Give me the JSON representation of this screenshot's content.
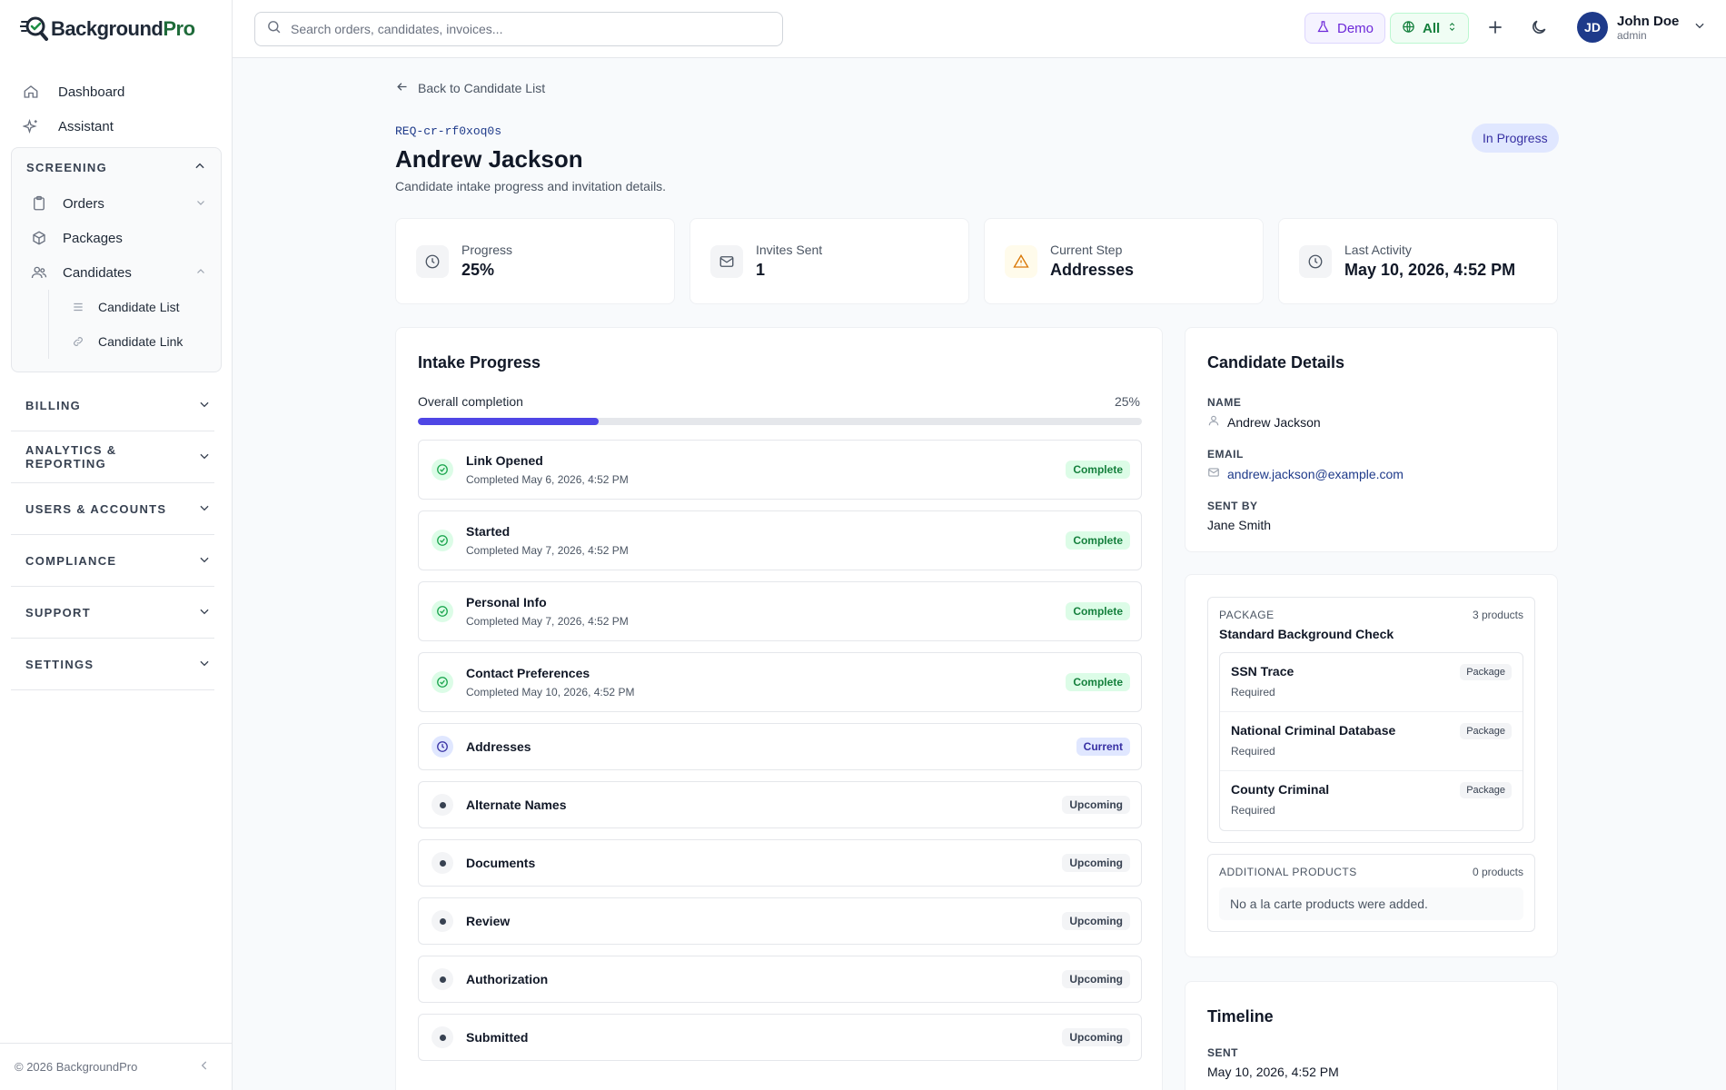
{
  "brand": {
    "name_part1": "Background",
    "name_part2": "Pro"
  },
  "sidebar": {
    "top_items": [
      {
        "label": "Dashboard",
        "icon": "home-icon"
      },
      {
        "label": "Assistant",
        "icon": "sparkle-icon"
      }
    ],
    "screening": {
      "title": "SCREENING",
      "items": [
        {
          "label": "Orders",
          "icon": "clipboard-icon"
        },
        {
          "label": "Packages",
          "icon": "box-icon"
        },
        {
          "label": "Candidates",
          "icon": "users-icon"
        }
      ],
      "candidate_sub": [
        {
          "label": "Candidate List",
          "icon": "list-icon"
        },
        {
          "label": "Candidate Link",
          "icon": "link-icon"
        }
      ]
    },
    "sections": [
      "BILLING",
      "ANALYTICS & REPORTING",
      "USERS & ACCOUNTS",
      "COMPLIANCE",
      "SUPPORT",
      "SETTINGS"
    ],
    "footer": "© 2026 BackgroundPro"
  },
  "topbar": {
    "search_placeholder": "Search orders, candidates, invoices...",
    "demo_label": "Demo",
    "scope_label": "All",
    "user": {
      "initials": "JD",
      "name": "John Doe",
      "role": "admin"
    }
  },
  "page": {
    "back_label": "Back to Candidate List",
    "request_id": "REQ-cr-rf0xoq0s",
    "title": "Andrew Jackson",
    "subtitle": "Candidate intake progress and invitation details.",
    "status": "In Progress"
  },
  "stats": [
    {
      "label": "Progress",
      "value": "25%",
      "icon": "clock-icon"
    },
    {
      "label": "Invites Sent",
      "value": "1",
      "icon": "mail-icon"
    },
    {
      "label": "Current Step",
      "value": "Addresses",
      "icon": "warning-icon"
    },
    {
      "label": "Last Activity",
      "value": "May 10, 2026, 4:52 PM",
      "icon": "clock-icon"
    }
  ],
  "intake": {
    "title": "Intake Progress",
    "overall_label": "Overall completion",
    "overall_pct_text": "25%",
    "overall_pct": 25,
    "steps": [
      {
        "name": "Link Opened",
        "date": "Completed May 6, 2026, 4:52 PM",
        "status": "complete",
        "badge": "Complete"
      },
      {
        "name": "Started",
        "date": "Completed May 7, 2026, 4:52 PM",
        "status": "complete",
        "badge": "Complete"
      },
      {
        "name": "Personal Info",
        "date": "Completed May 7, 2026, 4:52 PM",
        "status": "complete",
        "badge": "Complete"
      },
      {
        "name": "Contact Preferences",
        "date": "Completed May 10, 2026, 4:52 PM",
        "status": "complete",
        "badge": "Complete"
      },
      {
        "name": "Addresses",
        "date": "",
        "status": "current",
        "badge": "Current"
      },
      {
        "name": "Alternate Names",
        "date": "",
        "status": "upcoming",
        "badge": "Upcoming"
      },
      {
        "name": "Documents",
        "date": "",
        "status": "upcoming",
        "badge": "Upcoming"
      },
      {
        "name": "Review",
        "date": "",
        "status": "upcoming",
        "badge": "Upcoming"
      },
      {
        "name": "Authorization",
        "date": "",
        "status": "upcoming",
        "badge": "Upcoming"
      },
      {
        "name": "Submitted",
        "date": "",
        "status": "upcoming",
        "badge": "Upcoming"
      }
    ]
  },
  "details": {
    "title": "Candidate Details",
    "name_label": "NAME",
    "name": "Andrew Jackson",
    "email_label": "EMAIL",
    "email": "andrew.jackson@example.com",
    "sent_by_label": "SENT BY",
    "sent_by": "Jane Smith"
  },
  "package": {
    "label": "PACKAGE",
    "count": "3 products",
    "name": "Standard Background Check",
    "products": [
      {
        "name": "SSN Trace",
        "req": "Required",
        "badge": "Package"
      },
      {
        "name": "National Criminal Database",
        "req": "Required",
        "badge": "Package"
      },
      {
        "name": "County Criminal",
        "req": "Required",
        "badge": "Package"
      }
    ],
    "additional_label": "ADDITIONAL PRODUCTS",
    "additional_count": "0 products",
    "additional_empty": "No a la carte products were added."
  },
  "timeline": {
    "title": "Timeline",
    "sent_label": "SENT",
    "sent_value": "May 10, 2026, 4:52 PM"
  }
}
